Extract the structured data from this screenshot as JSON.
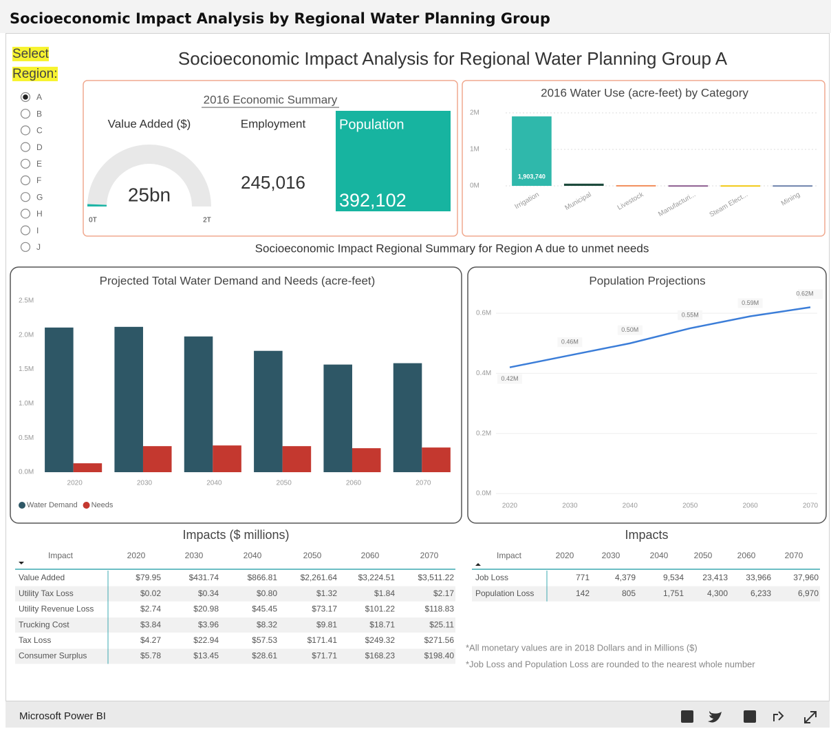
{
  "header": {
    "title": "Socioeconomic Impact Analysis by Regional Water Planning Group"
  },
  "slicer": {
    "label": "Select Region:",
    "options": [
      "A",
      "B",
      "C",
      "D",
      "E",
      "F",
      "G",
      "H",
      "I",
      "J"
    ],
    "selected": 0
  },
  "page_title": "Socioeconomic Impact Analysis for Regional Water Planning Group A",
  "summary": {
    "title": "2016 Economic Summary",
    "value_added": {
      "label": "Value Added ($)",
      "value": 25000000000,
      "value_label": "25bn",
      "min": {
        "value": 0,
        "label": "0T"
      },
      "max": {
        "value": 2000000000000,
        "label": "2T"
      },
      "color": "#1fb5a6"
    },
    "employment": {
      "label": "Employment",
      "value": "245,016"
    },
    "population": {
      "label": "Population",
      "value": "392,102",
      "color": "#17b4a0"
    }
  },
  "subtitle": "Socioeconomic Impact Regional Summary for Region A due to unmet needs",
  "chart_data": [
    {
      "type": "bar",
      "title": "2016 Water Use (acre-feet) by Category",
      "categories": [
        "Irrigation",
        "Municipal",
        "Livestock",
        "Manufacturi...",
        "Steam Elect...",
        "Mining"
      ],
      "values": [
        1903740,
        60000,
        20000,
        15000,
        15000,
        15000
      ],
      "value_labels": [
        "1,903,740",
        null,
        null,
        null,
        null,
        null
      ],
      "colors": [
        "#2fb8ab",
        "#1c4a3c",
        "#f28e5b",
        "#8b5b8e",
        "#f2c811",
        "#6b80aa"
      ],
      "ylim": [
        0,
        2000000
      ],
      "yticks": [
        {
          "value": 0,
          "label": "0M"
        },
        {
          "value": 1000000,
          "label": "1M"
        },
        {
          "value": 2000000,
          "label": "2M"
        }
      ],
      "grid": true
    },
    {
      "type": "bar",
      "title": "Projected Total Water Demand and Needs (acre-feet)",
      "categories": [
        "2020",
        "2030",
        "2040",
        "2050",
        "2060",
        "2070"
      ],
      "series": [
        {
          "name": "Water Demand",
          "color": "#2e5766",
          "values": [
            2110000,
            2120000,
            1980000,
            1770000,
            1570000,
            1590000
          ]
        },
        {
          "name": "Needs",
          "color": "#c4382f",
          "values": [
            130000,
            380000,
            390000,
            380000,
            350000,
            360000
          ]
        }
      ],
      "ylim": [
        0,
        2500000
      ],
      "yticks": [
        {
          "value": 0,
          "label": "0.0M"
        },
        {
          "value": 500000,
          "label": "0.5M"
        },
        {
          "value": 1000000,
          "label": "1.0M"
        },
        {
          "value": 1500000,
          "label": "1.5M"
        },
        {
          "value": 2000000,
          "label": "2.0M"
        },
        {
          "value": 2500000,
          "label": "2.5M"
        }
      ],
      "grid": false,
      "legend": "bottom-left"
    },
    {
      "type": "line",
      "title": "Population Projections",
      "x": [
        2020,
        2030,
        2040,
        2050,
        2060,
        2070
      ],
      "values": [
        420000,
        460000,
        500000,
        550000,
        590000,
        620000
      ],
      "value_labels": [
        "0.42M",
        "0.46M",
        "0.50M",
        "0.55M",
        "0.59M",
        "0.62M"
      ],
      "color": "#3b7dd8",
      "xlim": [
        2020,
        2070
      ],
      "xticks": [
        2020,
        2030,
        2040,
        2050,
        2060,
        2070
      ],
      "ylim": [
        0,
        660000
      ],
      "yticks": [
        {
          "value": 0,
          "label": "0.0M"
        },
        {
          "value": 200000,
          "label": "0.2M"
        },
        {
          "value": 400000,
          "label": "0.4M"
        },
        {
          "value": 600000,
          "label": "0.6M"
        }
      ],
      "grid": true
    }
  ],
  "tables": [
    {
      "title": "Impacts ($ millions)",
      "columns": [
        "Impact",
        "2020",
        "2030",
        "2040",
        "2050",
        "2060",
        "2070"
      ],
      "rows": [
        [
          "Value Added",
          "$79.95",
          "$431.74",
          "$866.81",
          "$2,261.64",
          "$3,224.51",
          "$3,511.22"
        ],
        [
          "Utility Tax Loss",
          "$0.02",
          "$0.34",
          "$0.80",
          "$1.32",
          "$1.84",
          "$2.17"
        ],
        [
          "Utility Revenue Loss",
          "$2.74",
          "$20.98",
          "$45.45",
          "$73.17",
          "$101.22",
          "$118.83"
        ],
        [
          "Trucking Cost",
          "$3.84",
          "$3.96",
          "$8.32",
          "$9.81",
          "$18.71",
          "$25.11"
        ],
        [
          "Tax Loss",
          "$4.27",
          "$22.94",
          "$57.53",
          "$171.41",
          "$249.32",
          "$271.56"
        ],
        [
          "Consumer Surplus",
          "$5.78",
          "$13.45",
          "$28.61",
          "$71.71",
          "$168.23",
          "$198.40"
        ]
      ]
    },
    {
      "title": "Impacts",
      "columns": [
        "Impact",
        "2020",
        "2030",
        "2040",
        "2050",
        "2060",
        "2070"
      ],
      "rows": [
        [
          "Job Loss",
          "771",
          "4,379",
          "9,534",
          "23,413",
          "33,966",
          "37,960"
        ],
        [
          "Population Loss",
          "142",
          "805",
          "1,751",
          "4,300",
          "6,233",
          "6,970"
        ]
      ]
    }
  ],
  "notes": [
    "*All monetary values are in 2018 Dollars and in Millions ($)",
    "*Job Loss and Population Loss are rounded to the nearest whole number"
  ],
  "footer": {
    "brand": "Microsoft Power BI"
  }
}
